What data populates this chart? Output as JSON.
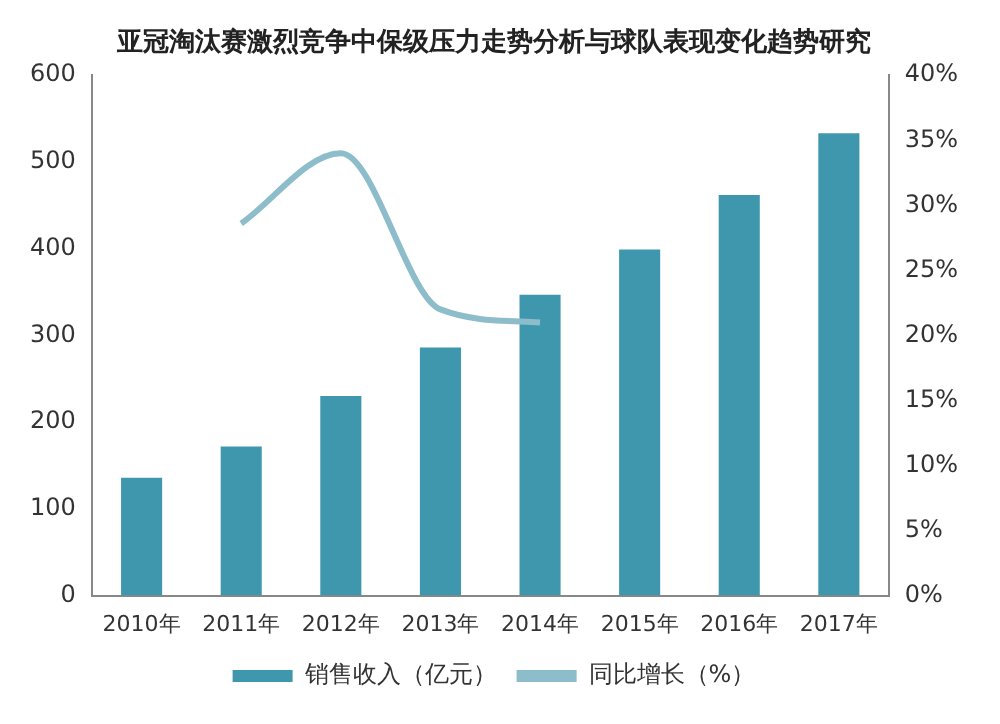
{
  "chart_data": {
    "type": "bar",
    "title": "亚冠淘汰赛激烈竞争中保级压力走势分析与球队表现变化趋势研究",
    "categories": [
      "2010年",
      "2011年",
      "2012年",
      "2013年",
      "2014年",
      "2015年",
      "2016年",
      "2017年"
    ],
    "series": [
      {
        "name": "销售收入（亿元）",
        "color": "#3f97ad",
        "values": [
          136,
          172,
          230,
          286,
          347,
          399,
          462,
          533
        ]
      },
      {
        "name": "同比增长（%）",
        "type": "line",
        "axis": "y2",
        "color": "#8dbccb",
        "values": [
          null,
          28.6,
          34,
          22,
          21,
          null,
          null,
          null
        ]
      }
    ],
    "ylim": [
      0,
      600
    ],
    "yticks": [
      0,
      100,
      200,
      300,
      400,
      500,
      600
    ],
    "y2lim": [
      0,
      40
    ],
    "y2ticks": [
      {
        "value": 0,
        "label": "0%"
      },
      {
        "value": 5,
        "label": "5%"
      },
      {
        "value": 10,
        "label": "10%"
      },
      {
        "value": 15,
        "label": "15%"
      },
      {
        "value": 20,
        "label": "20%"
      },
      {
        "value": 25,
        "label": "25%"
      },
      {
        "value": 30,
        "label": "30%"
      },
      {
        "value": 35,
        "label": "35%"
      },
      {
        "value": 40,
        "label": "40%"
      }
    ],
    "grid": false,
    "legend": "bottom",
    "marker": "none"
  }
}
